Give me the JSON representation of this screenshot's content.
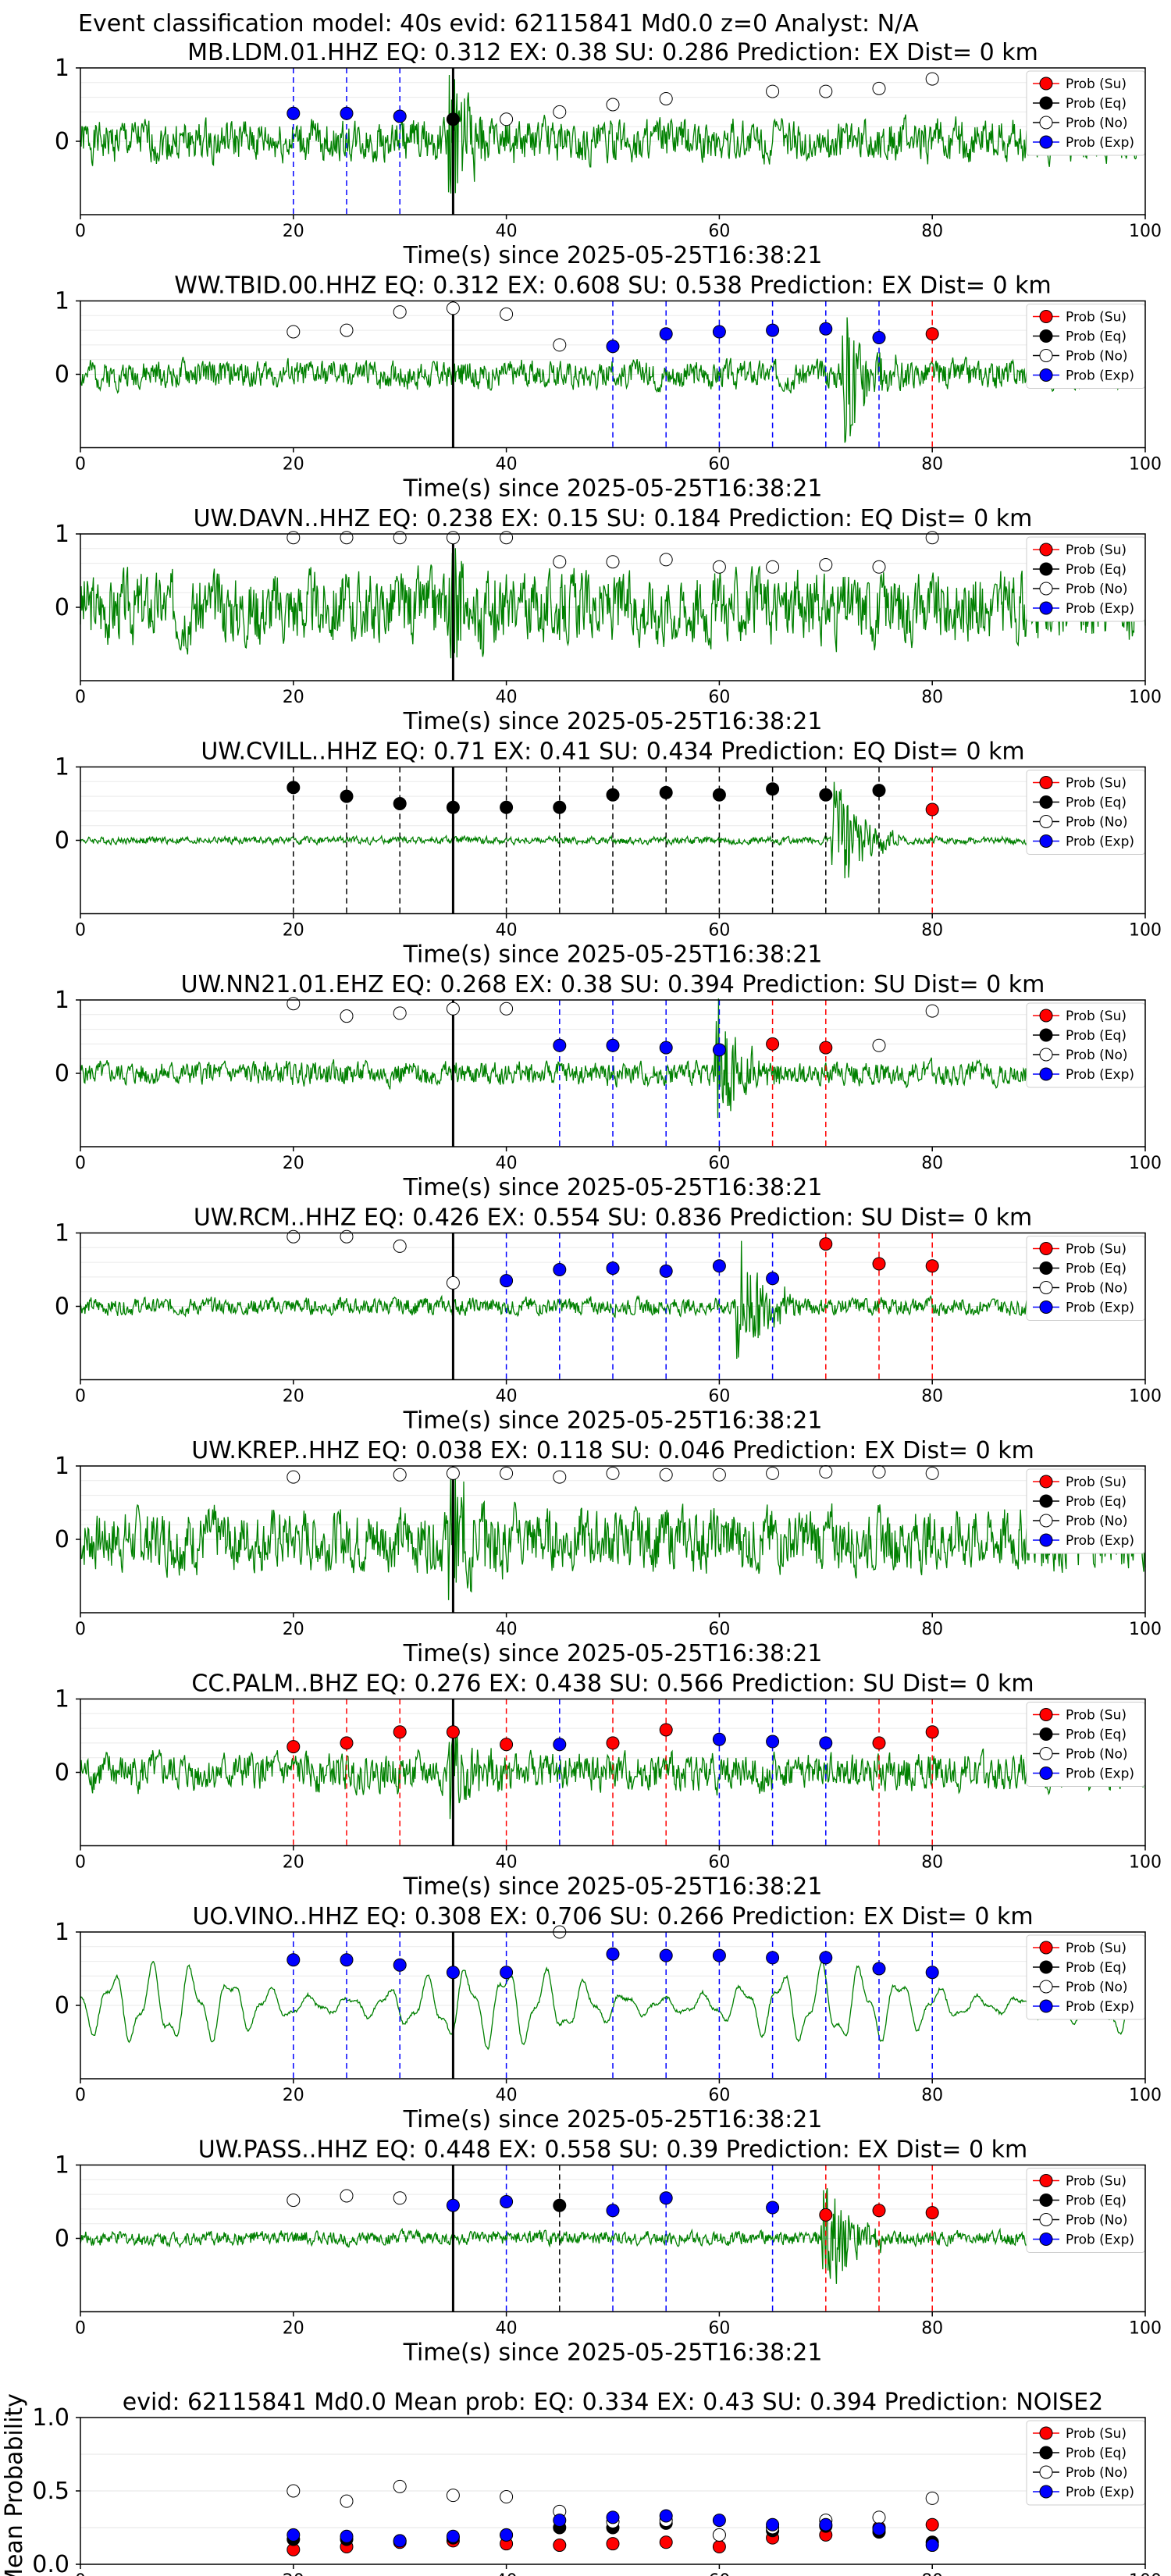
{
  "figure_title": "Event classification model: 40s evid: 62115841 Md0.0 z=0 Analyst: N/A",
  "colors": {
    "su": "#ff0000",
    "eq": "#000000",
    "no": "#ffffff",
    "exp": "#0000ff",
    "trace": "#008000"
  },
  "legend": [
    "Prob (Su)",
    "Prob (Eq)",
    "Prob (No)",
    "Prob (Exp)"
  ],
  "xlabel": "Time(s) since 2025-05-25T16:38:21",
  "x_ticks": [
    "0",
    "20",
    "40",
    "60",
    "80",
    "100"
  ],
  "y_ticks_station": [
    "1",
    "0"
  ],
  "y_ticks_mean": [
    "1.0",
    "0.5",
    "0.0"
  ],
  "mean_ylabel": "Mean Probability",
  "chart_data": [
    {
      "type": "scatter",
      "title": "MB.LDM.01.HHZ   EQ: 0.312  EX: 0.38  SU: 0.286   Prediction: EX    Dist= 0 km",
      "xlim": [
        0,
        100
      ],
      "ylim": [
        -1,
        1
      ],
      "trace_amp": 0.45,
      "trace_seed": 1,
      "burst": {
        "at": 35,
        "amp": 0.9
      },
      "eq_line": 35,
      "points": [
        {
          "x": 20,
          "y": 0.38,
          "c": "exp"
        },
        {
          "x": 25,
          "y": 0.38,
          "c": "exp"
        },
        {
          "x": 30,
          "y": 0.34,
          "c": "exp"
        },
        {
          "x": 35,
          "y": 0.3,
          "c": "eq"
        },
        {
          "x": 40,
          "y": 0.3,
          "c": "no"
        },
        {
          "x": 45,
          "y": 0.4,
          "c": "no"
        },
        {
          "x": 50,
          "y": 0.5,
          "c": "no"
        },
        {
          "x": 55,
          "y": 0.58,
          "c": "no"
        },
        {
          "x": 65,
          "y": 0.68,
          "c": "no"
        },
        {
          "x": 70,
          "y": 0.68,
          "c": "no"
        },
        {
          "x": 75,
          "y": 0.72,
          "c": "no"
        },
        {
          "x": 80,
          "y": 0.85,
          "c": "no"
        }
      ]
    },
    {
      "type": "scatter",
      "title": "WW.TBID.00.HHZ   EQ: 0.312  EX: 0.608  SU: 0.538   Prediction: EX    Dist= 0 km",
      "xlim": [
        0,
        100
      ],
      "ylim": [
        -1,
        1
      ],
      "trace_amp": 0.3,
      "trace_seed": 2,
      "burst": {
        "at": 72,
        "amp": 0.95
      },
      "eq_line": 35,
      "points": [
        {
          "x": 20,
          "y": 0.58,
          "c": "no"
        },
        {
          "x": 25,
          "y": 0.6,
          "c": "no"
        },
        {
          "x": 30,
          "y": 0.85,
          "c": "no"
        },
        {
          "x": 35,
          "y": 0.9,
          "c": "no"
        },
        {
          "x": 40,
          "y": 0.82,
          "c": "no"
        },
        {
          "x": 45,
          "y": 0.4,
          "c": "no"
        },
        {
          "x": 50,
          "y": 0.38,
          "c": "exp"
        },
        {
          "x": 55,
          "y": 0.55,
          "c": "exp"
        },
        {
          "x": 60,
          "y": 0.58,
          "c": "exp"
        },
        {
          "x": 65,
          "y": 0.6,
          "c": "exp"
        },
        {
          "x": 70,
          "y": 0.62,
          "c": "exp"
        },
        {
          "x": 75,
          "y": 0.5,
          "c": "exp"
        },
        {
          "x": 80,
          "y": 0.55,
          "c": "su"
        }
      ]
    },
    {
      "type": "scatter",
      "title": "UW.DAVN..HHZ   EQ: 0.238  EX: 0.15  SU: 0.184   Prediction: EQ    Dist= 0 km",
      "xlim": [
        0,
        100
      ],
      "ylim": [
        -1,
        1
      ],
      "trace_amp": 0.75,
      "trace_seed": 3,
      "burst": {
        "at": 35,
        "amp": 0.8
      },
      "eq_line": 35,
      "points": [
        {
          "x": 20,
          "y": 0.95,
          "c": "no"
        },
        {
          "x": 25,
          "y": 0.95,
          "c": "no"
        },
        {
          "x": 30,
          "y": 0.95,
          "c": "no"
        },
        {
          "x": 35,
          "y": 0.95,
          "c": "no"
        },
        {
          "x": 40,
          "y": 0.95,
          "c": "no"
        },
        {
          "x": 45,
          "y": 0.62,
          "c": "no"
        },
        {
          "x": 50,
          "y": 0.62,
          "c": "no"
        },
        {
          "x": 55,
          "y": 0.65,
          "c": "no"
        },
        {
          "x": 60,
          "y": 0.55,
          "c": "no"
        },
        {
          "x": 65,
          "y": 0.55,
          "c": "no"
        },
        {
          "x": 70,
          "y": 0.58,
          "c": "no"
        },
        {
          "x": 75,
          "y": 0.55,
          "c": "no"
        },
        {
          "x": 80,
          "y": 0.95,
          "c": "no"
        }
      ]
    },
    {
      "type": "scatter",
      "title": "UW.CVILL..HHZ   EQ: 0.71  EX: 0.41  SU: 0.434   Prediction: EQ    Dist= 0 km",
      "xlim": [
        0,
        100
      ],
      "ylim": [
        -1,
        1
      ],
      "trace_amp": 0.08,
      "trace_seed": 4,
      "burst": {
        "at": 71,
        "amp": 0.95
      },
      "eq_line": 35,
      "points": [
        {
          "x": 20,
          "y": 0.72,
          "c": "eq"
        },
        {
          "x": 25,
          "y": 0.6,
          "c": "eq"
        },
        {
          "x": 30,
          "y": 0.5,
          "c": "eq"
        },
        {
          "x": 35,
          "y": 0.45,
          "c": "eq"
        },
        {
          "x": 40,
          "y": 0.45,
          "c": "eq"
        },
        {
          "x": 45,
          "y": 0.45,
          "c": "eq"
        },
        {
          "x": 50,
          "y": 0.62,
          "c": "eq"
        },
        {
          "x": 55,
          "y": 0.65,
          "c": "eq"
        },
        {
          "x": 60,
          "y": 0.62,
          "c": "eq"
        },
        {
          "x": 65,
          "y": 0.7,
          "c": "eq"
        },
        {
          "x": 70,
          "y": 0.62,
          "c": "eq"
        },
        {
          "x": 75,
          "y": 0.68,
          "c": "eq"
        },
        {
          "x": 80,
          "y": 0.42,
          "c": "su"
        }
      ]
    },
    {
      "type": "scatter",
      "title": "UW.NN21.01.EHZ   EQ: 0.268  EX: 0.38  SU: 0.394   Prediction: SU    Dist= 0 km",
      "xlim": [
        0,
        100
      ],
      "ylim": [
        -1,
        1
      ],
      "trace_amp": 0.25,
      "trace_seed": 5,
      "burst": {
        "at": 60,
        "amp": 0.95
      },
      "eq_line": 35,
      "points": [
        {
          "x": 20,
          "y": 0.95,
          "c": "no"
        },
        {
          "x": 25,
          "y": 0.78,
          "c": "no"
        },
        {
          "x": 30,
          "y": 0.82,
          "c": "no"
        },
        {
          "x": 35,
          "y": 0.88,
          "c": "no"
        },
        {
          "x": 40,
          "y": 0.88,
          "c": "no"
        },
        {
          "x": 45,
          "y": 0.38,
          "c": "exp"
        },
        {
          "x": 50,
          "y": 0.38,
          "c": "exp"
        },
        {
          "x": 55,
          "y": 0.35,
          "c": "exp"
        },
        {
          "x": 60,
          "y": 0.32,
          "c": "exp"
        },
        {
          "x": 65,
          "y": 0.4,
          "c": "su"
        },
        {
          "x": 70,
          "y": 0.35,
          "c": "su"
        },
        {
          "x": 75,
          "y": 0.38,
          "c": "no"
        },
        {
          "x": 80,
          "y": 0.85,
          "c": "no"
        }
      ]
    },
    {
      "type": "scatter",
      "title": "UW.RCM..HHZ   EQ: 0.426  EX: 0.554  SU: 0.836   Prediction: SU    Dist= 0 km",
      "xlim": [
        0,
        100
      ],
      "ylim": [
        -1,
        1
      ],
      "trace_amp": 0.18,
      "trace_seed": 6,
      "burst": {
        "at": 62,
        "amp": 0.95
      },
      "eq_line": 35,
      "points": [
        {
          "x": 20,
          "y": 0.95,
          "c": "no"
        },
        {
          "x": 25,
          "y": 0.95,
          "c": "no"
        },
        {
          "x": 30,
          "y": 0.82,
          "c": "no"
        },
        {
          "x": 35,
          "y": 0.32,
          "c": "no"
        },
        {
          "x": 40,
          "y": 0.35,
          "c": "exp"
        },
        {
          "x": 45,
          "y": 0.5,
          "c": "exp"
        },
        {
          "x": 50,
          "y": 0.52,
          "c": "exp"
        },
        {
          "x": 55,
          "y": 0.48,
          "c": "exp"
        },
        {
          "x": 60,
          "y": 0.55,
          "c": "exp"
        },
        {
          "x": 65,
          "y": 0.38,
          "c": "exp"
        },
        {
          "x": 70,
          "y": 0.85,
          "c": "su"
        },
        {
          "x": 75,
          "y": 0.58,
          "c": "su"
        },
        {
          "x": 80,
          "y": 0.55,
          "c": "su"
        }
      ]
    },
    {
      "type": "scatter",
      "title": "UW.KREP..HHZ   EQ: 0.038  EX: 0.118  SU: 0.046   Prediction: EX    Dist= 0 km",
      "xlim": [
        0,
        100
      ],
      "ylim": [
        -1,
        1
      ],
      "trace_amp": 0.65,
      "trace_seed": 7,
      "burst": {
        "at": 35,
        "amp": 0.8
      },
      "eq_line": 35,
      "points": [
        {
          "x": 20,
          "y": 0.85,
          "c": "no"
        },
        {
          "x": 30,
          "y": 0.88,
          "c": "no"
        },
        {
          "x": 35,
          "y": 0.9,
          "c": "no"
        },
        {
          "x": 40,
          "y": 0.9,
          "c": "no"
        },
        {
          "x": 45,
          "y": 0.85,
          "c": "no"
        },
        {
          "x": 50,
          "y": 0.9,
          "c": "no"
        },
        {
          "x": 55,
          "y": 0.88,
          "c": "no"
        },
        {
          "x": 60,
          "y": 0.88,
          "c": "no"
        },
        {
          "x": 65,
          "y": 0.9,
          "c": "no"
        },
        {
          "x": 70,
          "y": 0.92,
          "c": "no"
        },
        {
          "x": 75,
          "y": 0.92,
          "c": "no"
        },
        {
          "x": 80,
          "y": 0.9,
          "c": "no"
        }
      ]
    },
    {
      "type": "scatter",
      "title": "CC.PALM..BHZ   EQ: 0.276  EX: 0.438  SU: 0.566   Prediction: SU    Dist= 0 km",
      "xlim": [
        0,
        100
      ],
      "ylim": [
        -1,
        1
      ],
      "trace_amp": 0.4,
      "trace_seed": 8,
      "burst": {
        "at": 35,
        "amp": 0.6
      },
      "eq_line": 35,
      "points": [
        {
          "x": 20,
          "y": 0.35,
          "c": "su"
        },
        {
          "x": 25,
          "y": 0.4,
          "c": "su"
        },
        {
          "x": 30,
          "y": 0.55,
          "c": "su"
        },
        {
          "x": 35,
          "y": 0.55,
          "c": "su"
        },
        {
          "x": 40,
          "y": 0.38,
          "c": "su"
        },
        {
          "x": 45,
          "y": 0.38,
          "c": "exp"
        },
        {
          "x": 50,
          "y": 0.4,
          "c": "su"
        },
        {
          "x": 55,
          "y": 0.58,
          "c": "su"
        },
        {
          "x": 60,
          "y": 0.45,
          "c": "exp"
        },
        {
          "x": 65,
          "y": 0.42,
          "c": "exp"
        },
        {
          "x": 70,
          "y": 0.4,
          "c": "exp"
        },
        {
          "x": 75,
          "y": 0.4,
          "c": "su"
        },
        {
          "x": 80,
          "y": 0.55,
          "c": "su"
        }
      ]
    },
    {
      "type": "scatter",
      "title": "UO.VINO..HHZ   EQ: 0.308  EX: 0.706  SU: 0.266   Prediction: EX    Dist= 0 km",
      "xlim": [
        0,
        100
      ],
      "ylim": [
        -1,
        1
      ],
      "trace_amp": 0.55,
      "trace_seed": 9,
      "smooth": true,
      "eq_line": 35,
      "points": [
        {
          "x": 20,
          "y": 0.62,
          "c": "exp"
        },
        {
          "x": 25,
          "y": 0.62,
          "c": "exp"
        },
        {
          "x": 30,
          "y": 0.55,
          "c": "exp"
        },
        {
          "x": 35,
          "y": 0.45,
          "c": "exp"
        },
        {
          "x": 40,
          "y": 0.45,
          "c": "exp"
        },
        {
          "x": 45,
          "y": 1.0,
          "c": "no"
        },
        {
          "x": 50,
          "y": 0.7,
          "c": "exp"
        },
        {
          "x": 55,
          "y": 0.68,
          "c": "exp"
        },
        {
          "x": 60,
          "y": 0.68,
          "c": "exp"
        },
        {
          "x": 65,
          "y": 0.65,
          "c": "exp"
        },
        {
          "x": 70,
          "y": 0.65,
          "c": "exp"
        },
        {
          "x": 75,
          "y": 0.5,
          "c": "exp"
        },
        {
          "x": 80,
          "y": 0.45,
          "c": "exp"
        }
      ]
    },
    {
      "type": "scatter",
      "title": "UW.PASS..HHZ   EQ: 0.448  EX: 0.558  SU: 0.39   Prediction: EX    Dist= 0 km",
      "xlim": [
        0,
        100
      ],
      "ylim": [
        -1,
        1
      ],
      "trace_amp": 0.15,
      "trace_seed": 10,
      "burst": {
        "at": 70,
        "amp": 0.95
      },
      "eq_line": 35,
      "points": [
        {
          "x": 20,
          "y": 0.52,
          "c": "no"
        },
        {
          "x": 25,
          "y": 0.58,
          "c": "no"
        },
        {
          "x": 30,
          "y": 0.55,
          "c": "no"
        },
        {
          "x": 35,
          "y": 0.45,
          "c": "exp"
        },
        {
          "x": 40,
          "y": 0.5,
          "c": "exp"
        },
        {
          "x": 45,
          "y": 0.45,
          "c": "eq"
        },
        {
          "x": 50,
          "y": 0.38,
          "c": "exp"
        },
        {
          "x": 55,
          "y": 0.55,
          "c": "exp"
        },
        {
          "x": 65,
          "y": 0.42,
          "c": "exp"
        },
        {
          "x": 70,
          "y": 0.32,
          "c": "su"
        },
        {
          "x": 75,
          "y": 0.38,
          "c": "su"
        },
        {
          "x": 80,
          "y": 0.35,
          "c": "su"
        }
      ]
    },
    {
      "type": "scatter",
      "title": "evid: 62115841  Md0.0   Mean prob:   EQ: 0.334  EX: 0.43  SU: 0.394   Prediction: NOISE2",
      "ylabel": "Mean Probability",
      "xlim": [
        0,
        100
      ],
      "ylim": [
        0,
        1
      ],
      "series": [
        {
          "name": "Prob (Su)",
          "c": "su",
          "x": [
            20,
            25,
            30,
            35,
            40,
            45,
            50,
            55,
            60,
            65,
            70,
            75,
            80
          ],
          "y": [
            0.1,
            0.12,
            0.15,
            0.16,
            0.14,
            0.13,
            0.14,
            0.15,
            0.12,
            0.18,
            0.2,
            0.25,
            0.27
          ]
        },
        {
          "name": "Prob (Eq)",
          "c": "eq",
          "x": [
            20,
            25,
            30,
            35,
            40,
            45,
            50,
            55,
            60,
            65,
            70,
            75,
            80
          ],
          "y": [
            0.17,
            0.17,
            0.16,
            0.18,
            0.2,
            0.25,
            0.25,
            0.28,
            0.2,
            0.23,
            0.26,
            0.22,
            0.15
          ]
        },
        {
          "name": "Prob (No)",
          "c": "no",
          "x": [
            20,
            25,
            30,
            35,
            40,
            45,
            50,
            55,
            60,
            65,
            70,
            75,
            80
          ],
          "y": [
            0.5,
            0.43,
            0.53,
            0.47,
            0.46,
            0.36,
            0.29,
            0.3,
            0.2,
            0.25,
            0.3,
            0.32,
            0.45
          ]
        },
        {
          "name": "Prob (Exp)",
          "c": "exp",
          "x": [
            20,
            25,
            30,
            35,
            40,
            45,
            50,
            55,
            60,
            65,
            70,
            75,
            80
          ],
          "y": [
            0.2,
            0.19,
            0.16,
            0.19,
            0.2,
            0.3,
            0.32,
            0.33,
            0.3,
            0.27,
            0.27,
            0.24,
            0.13
          ]
        }
      ]
    }
  ]
}
